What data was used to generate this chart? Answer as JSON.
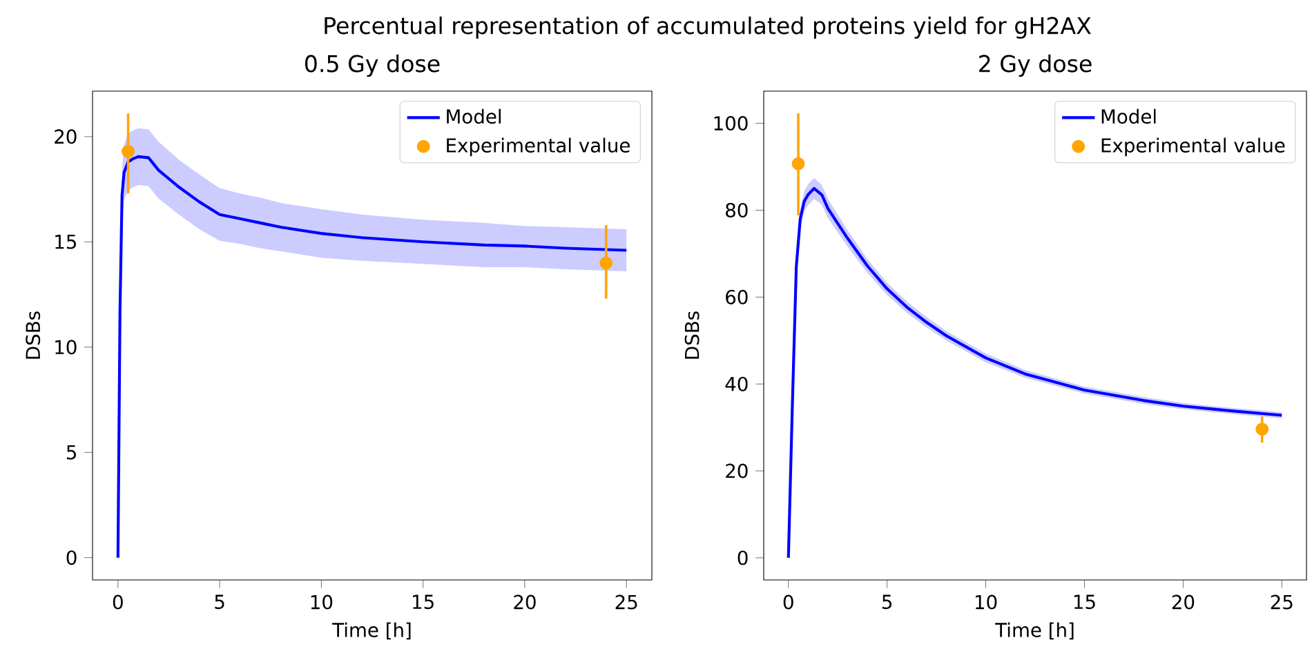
{
  "chart_data": [
    {
      "type": "line",
      "title": "0.5 Gy dose",
      "xlabel": "Time [h]",
      "ylabel": "DSBs",
      "annotations": [
        "Percentual representation of accumulated proteins yield for gH2AX"
      ],
      "xlim": [
        -1.25,
        26.25
      ],
      "ylim": [
        -1.06,
        22.16
      ],
      "xticks": [
        0,
        5,
        10,
        15,
        20,
        25
      ],
      "yticks": [
        0,
        5,
        10,
        15,
        20
      ],
      "legend": "top right",
      "series": [
        {
          "name": "Model",
          "color": "#0000ff",
          "marker": "none",
          "x": [
            0,
            0.1,
            0.2,
            0.3,
            0.5,
            0.75,
            1,
            1.5,
            2,
            3,
            4,
            5,
            6,
            7,
            8,
            10,
            12,
            15,
            18,
            20,
            22,
            25
          ],
          "values": [
            0,
            11.7,
            17.2,
            18.3,
            18.8,
            18.95,
            19.05,
            19.0,
            18.4,
            17.6,
            16.9,
            16.3,
            16.1,
            15.9,
            15.7,
            15.4,
            15.2,
            15.0,
            14.85,
            14.8,
            14.7,
            14.6
          ],
          "lower": [
            0,
            10.9,
            16.0,
            17.0,
            17.45,
            17.6,
            17.7,
            17.65,
            17.05,
            16.3,
            15.6,
            15.05,
            14.9,
            14.7,
            14.55,
            14.25,
            14.1,
            13.95,
            13.8,
            13.8,
            13.7,
            13.6
          ],
          "upper": [
            0,
            12.5,
            18.4,
            19.6,
            20.15,
            20.3,
            20.4,
            20.35,
            19.75,
            18.9,
            18.2,
            17.55,
            17.3,
            17.1,
            16.85,
            16.55,
            16.3,
            16.05,
            15.9,
            15.75,
            15.7,
            15.6
          ]
        },
        {
          "name": "Experimental value",
          "type": "scatter",
          "color": "#ffa500",
          "marker": "circle",
          "x": [
            0.5,
            24
          ],
          "values": [
            19.3,
            14.0
          ],
          "errors": [
            [
              17.3,
              21.1
            ],
            [
              12.3,
              15.8
            ]
          ]
        }
      ]
    },
    {
      "type": "line",
      "title": "2 Gy dose",
      "xlabel": "Time [h]",
      "ylabel": "DSBs",
      "xlim": [
        -1.25,
        26.25
      ],
      "ylim": [
        -5.1,
        107.4
      ],
      "xticks": [
        0,
        5,
        10,
        15,
        20,
        25
      ],
      "yticks": [
        0,
        20,
        40,
        60,
        80,
        100
      ],
      "legend": "top right",
      "series": [
        {
          "name": "Model",
          "color": "#0000ff",
          "marker": "none",
          "x": [
            0,
            0.2,
            0.4,
            0.6,
            0.8,
            1,
            1.3,
            1.7,
            2,
            3,
            4,
            5,
            6,
            7,
            8,
            10,
            12,
            15,
            18,
            20,
            22,
            25
          ],
          "values": [
            0,
            35,
            67,
            78,
            82,
            83.6,
            85,
            83.5,
            80.4,
            73.5,
            67.2,
            61.9,
            57.7,
            54.2,
            51.1,
            46,
            42.3,
            38.6,
            36.2,
            34.9,
            34,
            32.8
          ],
          "lower": [
            0,
            34,
            65,
            75.7,
            79.6,
            81.2,
            82.6,
            81.2,
            78.2,
            71.6,
            65.6,
            60.5,
            56.4,
            53,
            50,
            45,
            41.4,
            37.8,
            35.4,
            34.2,
            33.3,
            32.1
          ],
          "upper": [
            0,
            36,
            69,
            80.3,
            84.4,
            86,
            87.4,
            85.8,
            82.6,
            75.4,
            68.8,
            63.3,
            59,
            55.4,
            52.2,
            47,
            43.2,
            39.4,
            37,
            35.6,
            34.7,
            33.5
          ]
        },
        {
          "name": "Experimental value",
          "type": "scatter",
          "color": "#ffa500",
          "marker": "circle",
          "x": [
            0.5,
            24
          ],
          "values": [
            90.7,
            29.6
          ],
          "errors": [
            [
              78.8,
              102.3
            ],
            [
              26.5,
              32.5
            ]
          ]
        }
      ]
    }
  ]
}
